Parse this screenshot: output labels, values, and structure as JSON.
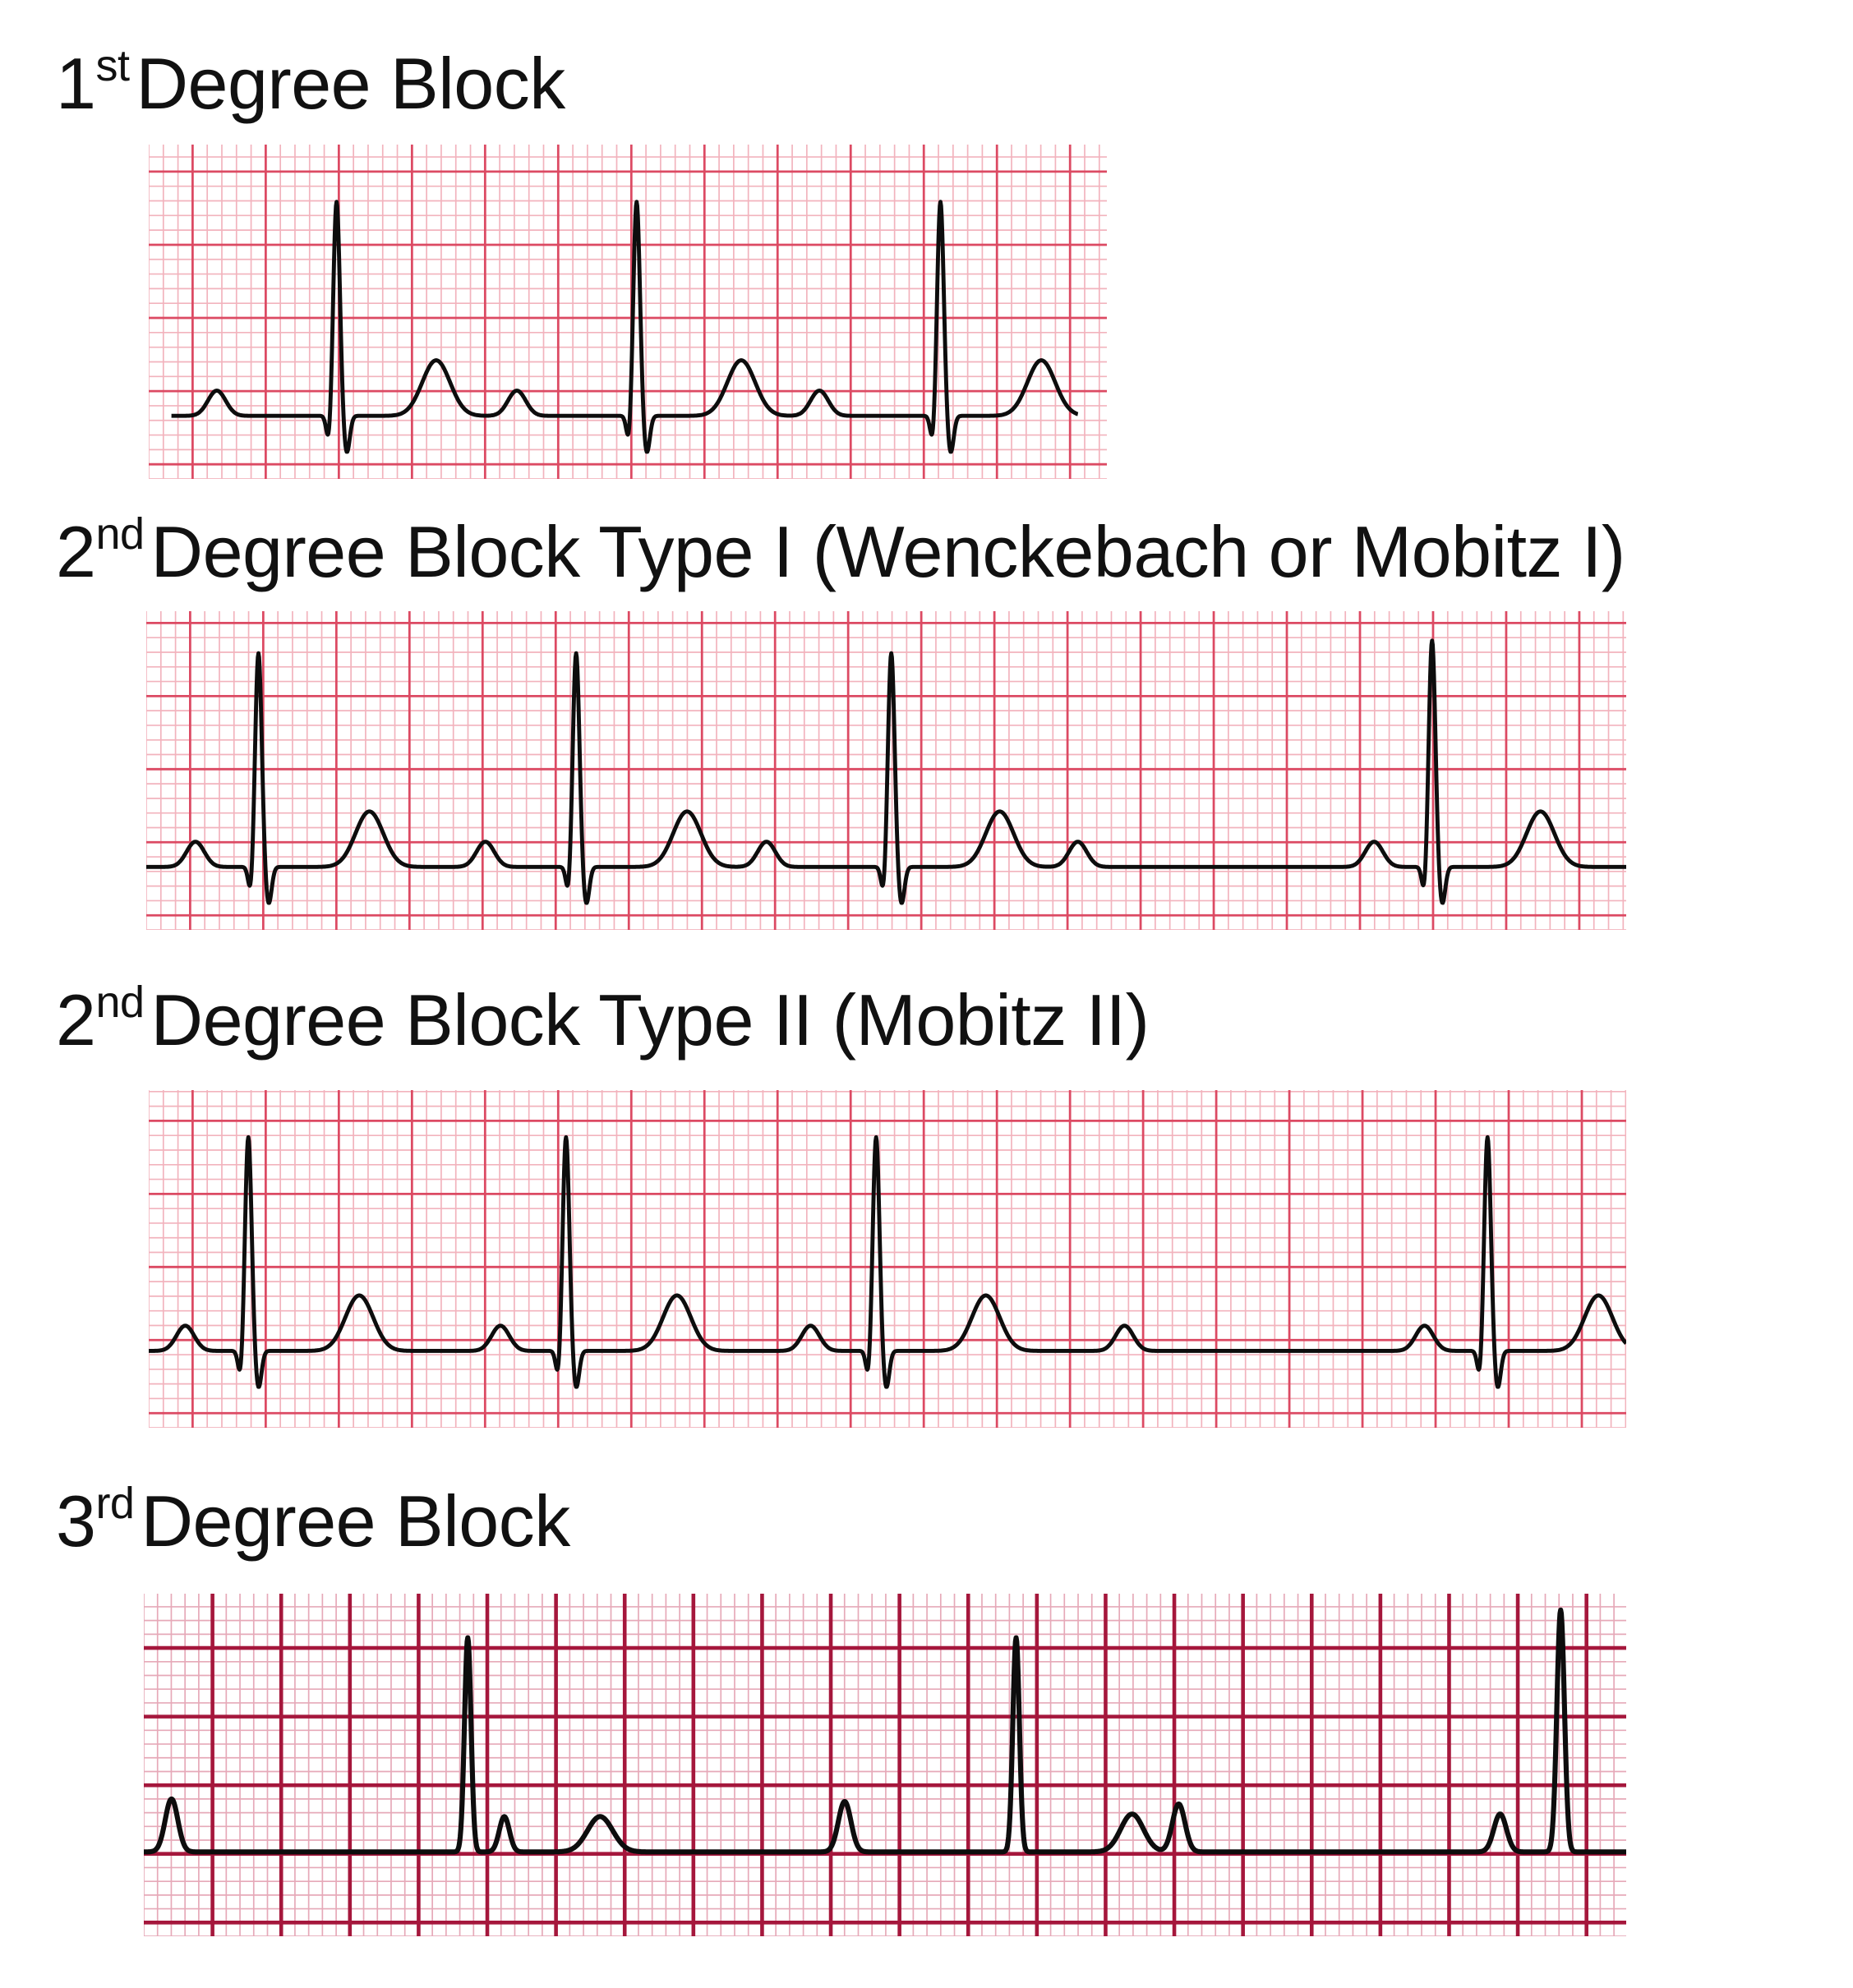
{
  "colors": {
    "grid_minor": "#f2b3bd",
    "grid_major": "#dc4a63",
    "grid_minor_dark": "#e6a9b8",
    "grid_major_dark": "#a5173c",
    "trace": "#0d0d0d"
  },
  "strips": [
    {
      "number": "1",
      "suffix": "st",
      "title": "Degree Block"
    },
    {
      "number": "2",
      "suffix": "nd",
      "title": "Degree Block Type I (Wenckebach or Mobitz I)"
    },
    {
      "number": "2",
      "suffix": "nd",
      "title": "Degree Block Type II (Mobitz II)"
    },
    {
      "number": "3",
      "suffix": "rd",
      "title": "Degree Block"
    }
  ]
}
